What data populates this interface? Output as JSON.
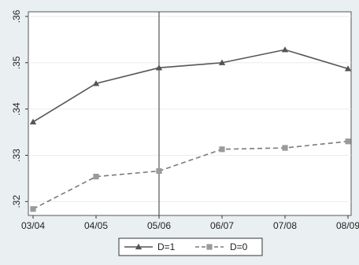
{
  "chart_data": {
    "type": "line",
    "categories": [
      "03/04",
      "04/05",
      "05/06",
      "06/07",
      "07/08",
      "08/09"
    ],
    "series": [
      {
        "name": "D=1",
        "values": [
          0.3372,
          0.3455,
          0.3489,
          0.35,
          0.3528,
          0.3487
        ],
        "color": "#555555",
        "marker": "triangle",
        "dash": "solid"
      },
      {
        "name": "D=0",
        "values": [
          0.3184,
          0.3254,
          0.3266,
          0.3313,
          0.3316,
          0.333
        ],
        "color": "#7a7a7a",
        "marker": "square",
        "dash": "dashed"
      }
    ],
    "ylim": [
      0.317,
      0.361
    ],
    "yticks": [
      0.32,
      0.33,
      0.34,
      0.35,
      0.36
    ],
    "ytick_labels": [
      ".32",
      ".33",
      ".34",
      ".35",
      ".36"
    ],
    "vertical_line_at": "05/06",
    "grid": true,
    "legend": "bottom",
    "background": "#eaf0f2",
    "plot_background": "#ffffff"
  }
}
